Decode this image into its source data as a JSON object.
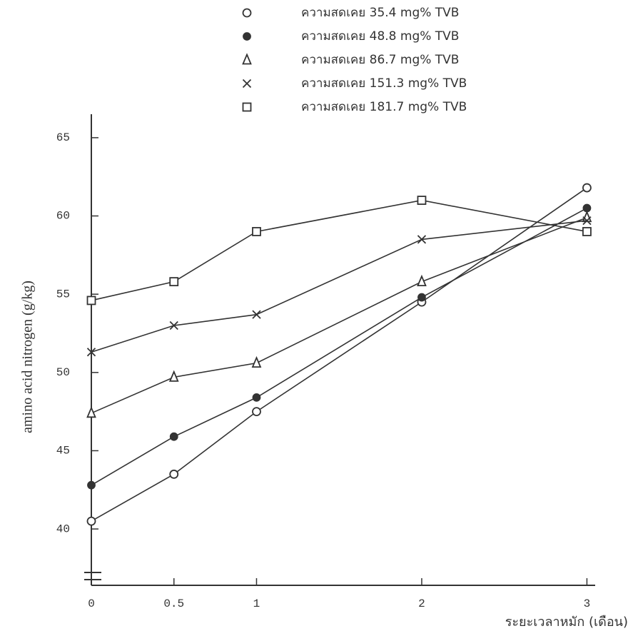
{
  "chart_data": {
    "type": "line",
    "x_label": "ระยะเวลาหมัก (เดือน)",
    "y_label": "amino acid nitrogen (g/kg)",
    "xlim": [
      0,
      3.05
    ],
    "xticks": [
      0,
      0.5,
      1,
      2,
      3
    ],
    "ylim": [
      36.4,
      66.5
    ],
    "yticks": [
      40,
      45,
      50,
      55,
      60,
      65
    ],
    "x": [
      0,
      0.5,
      1,
      2,
      3
    ],
    "series": [
      {
        "name": "ความสดเคย 35.4 mg% TVB",
        "marker": "open-circle",
        "color": "#333333",
        "values": [
          40.5,
          43.5,
          47.5,
          54.5,
          61.8
        ]
      },
      {
        "name": "ความสดเคย 48.8 mg% TVB",
        "marker": "filled-circle",
        "color": "#333333",
        "values": [
          42.8,
          45.9,
          48.4,
          54.8,
          60.5
        ]
      },
      {
        "name": "ความสดเคย 86.7 mg% TVB",
        "marker": "triangle",
        "color": "#333333",
        "values": [
          47.4,
          49.7,
          50.6,
          55.8,
          59.9
        ]
      },
      {
        "name": "ความสดเคย 151.3 mg% TVB",
        "marker": "cross",
        "color": "#333333",
        "values": [
          51.3,
          53.0,
          53.7,
          58.5,
          59.7
        ]
      },
      {
        "name": "ความสดเคย 181.7 mg% TVB",
        "marker": "square",
        "color": "#333333",
        "values": [
          54.6,
          55.8,
          59.0,
          61.0,
          59.0
        ]
      }
    ]
  }
}
